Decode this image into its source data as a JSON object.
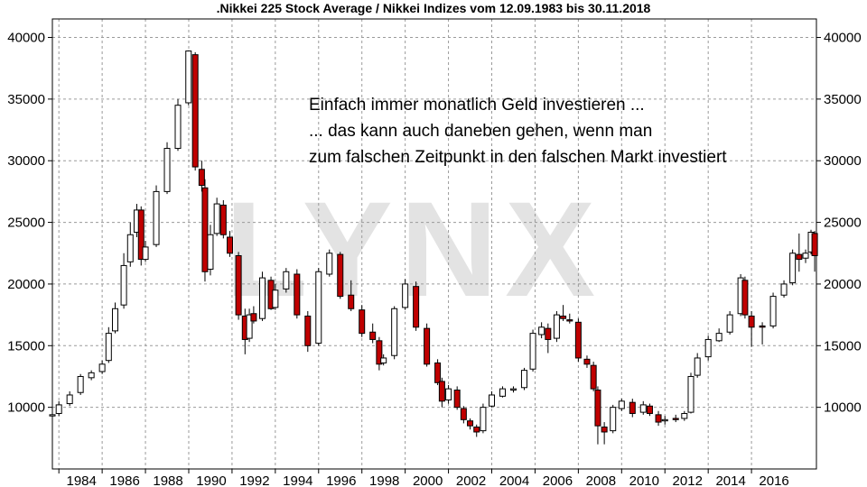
{
  "chart_data": {
    "type": "candlestick",
    "title": ".Nikkei 225 Stock Average / Nikkei Indizes vom 12.09.1983 bis 30.11.2018",
    "watermark": "LYNX",
    "annotation_lines": [
      "Einfach immer monatlich Geld investieren ...",
      "... das kann auch daneben gehen, wenn man",
      "zum falschen Zeitpunkt in den falschen Markt investiert"
    ],
    "y_ticks": [
      10000,
      15000,
      20000,
      25000,
      30000,
      35000,
      40000
    ],
    "x_ticks": [
      "1984",
      "1986",
      "1988",
      "1990",
      "1992",
      "1994",
      "1996",
      "1998",
      "2000",
      "2002",
      "2004",
      "2006",
      "2008",
      "2010",
      "2012",
      "2014",
      "2016"
    ],
    "xlim": [
      1983.7,
      2019.0
    ],
    "ylim": [
      5000,
      41500
    ],
    "grid": true,
    "colors": {
      "up": "#ffffff",
      "down": "#c00000",
      "outline": "#000000"
    },
    "x": [
      1983.7,
      1984.0,
      1984.5,
      1985.0,
      1985.5,
      1986.0,
      1986.3,
      1986.6,
      1987.0,
      1987.3,
      1987.6,
      1987.8,
      1988.0,
      1988.5,
      1989.0,
      1989.5,
      1989.99,
      1990.3,
      1990.6,
      1990.75,
      1991.0,
      1991.3,
      1991.6,
      1991.9,
      1992.3,
      1992.6,
      1992.8,
      1993.0,
      1993.4,
      1993.8,
      1994.0,
      1994.5,
      1995.0,
      1995.5,
      1996.0,
      1996.5,
      1997.0,
      1997.5,
      1998.0,
      1998.5,
      1998.8,
      1999.0,
      1999.5,
      2000.0,
      2000.5,
      2001.0,
      2001.5,
      2001.7,
      2002.0,
      2002.4,
      2002.7,
      2003.0,
      2003.3,
      2003.6,
      2004.0,
      2004.5,
      2005.0,
      2005.5,
      2005.9,
      2006.3,
      2006.6,
      2007.0,
      2007.3,
      2007.6,
      2008.0,
      2008.4,
      2008.7,
      2008.9,
      2009.2,
      2009.6,
      2010.0,
      2010.5,
      2011.0,
      2011.3,
      2011.7,
      2012.0,
      2012.5,
      2012.9,
      2013.2,
      2013.5,
      2014.0,
      2014.5,
      2015.0,
      2015.5,
      2015.7,
      2016.0,
      2016.5,
      2017.0,
      2017.5,
      2017.9,
      2018.2,
      2018.5,
      2018.75,
      2018.92
    ],
    "close": [
      9400,
      10200,
      11000,
      12500,
      12800,
      13500,
      16000,
      18000,
      21500,
      24000,
      26000,
      22000,
      23000,
      27500,
      31000,
      34500,
      38900,
      29500,
      28000,
      21000,
      24000,
      26500,
      24000,
      22500,
      17500,
      15500,
      17500,
      17000,
      20500,
      18000,
      19500,
      21000,
      17500,
      15000,
      21000,
      22500,
      19000,
      18000,
      16000,
      15500,
      13500,
      14000,
      18000,
      20000,
      16500,
      13500,
      12000,
      10500,
      11500,
      10000,
      9000,
      8500,
      8000,
      10000,
      11000,
      11500,
      11500,
      13000,
      16000,
      16500,
      15500,
      17500,
      17200,
      17000,
      14000,
      13500,
      11500,
      8500,
      8000,
      10000,
      10500,
      9500,
      10200,
      9500,
      8800,
      9000,
      9000,
      9500,
      12500,
      14000,
      15500,
      16000,
      17500,
      20500,
      17500,
      16500,
      16500,
      19000,
      20000,
      22500,
      22000,
      22500,
      24200,
      22300
    ],
    "open": [
      9300,
      9500,
      10300,
      11200,
      12400,
      12900,
      13800,
      16200,
      18300,
      21800,
      24200,
      26000,
      22000,
      23200,
      27500,
      31000,
      34700,
      38600,
      29300,
      27800,
      21200,
      24100,
      26400,
      23800,
      22300,
      17400,
      15600,
      17600,
      17200,
      20300,
      18100,
      19600,
      20800,
      17400,
      15200,
      20800,
      22400,
      19100,
      17900,
      16100,
      15400,
      13600,
      14200,
      18100,
      19800,
      16400,
      13600,
      12100,
      10600,
      11400,
      9900,
      8900,
      8400,
      8100,
      10100,
      10900,
      11400,
      11600,
      13100,
      15900,
      16400,
      15600,
      17400,
      17100,
      16900,
      13900,
      13400,
      11400,
      8400,
      8100,
      9900,
      10400,
      9600,
      10100,
      9400,
      8900,
      9100,
      9100,
      9600,
      12600,
      14100,
      15400,
      16100,
      17600,
      20300,
      17400,
      16600,
      16600,
      19100,
      20100,
      22400,
      22100,
      22600,
      24100
    ],
    "high": [
      9600,
      10500,
      11300,
      12700,
      13000,
      13800,
      16500,
      18500,
      22500,
      25000,
      26500,
      26300,
      23500,
      28000,
      31500,
      35000,
      38950,
      38800,
      30000,
      28500,
      24800,
      27000,
      26800,
      24300,
      22600,
      18000,
      18000,
      18200,
      21000,
      20600,
      20000,
      21300,
      21200,
      17800,
      21300,
      22800,
      22600,
      20300,
      18300,
      16800,
      15700,
      14300,
      18200,
      20400,
      20200,
      16800,
      13900,
      12400,
      11800,
      11700,
      10100,
      9100,
      8600,
      10300,
      11300,
      11700,
      11700,
      13200,
      16300,
      16900,
      16800,
      17800,
      18300,
      17600,
      17200,
      14200,
      13700,
      11700,
      8800,
      10200,
      10700,
      10700,
      10500,
      10300,
      9700,
      9300,
      9400,
      9700,
      12800,
      14400,
      15800,
      16400,
      17800,
      20800,
      20600,
      17800,
      16900,
      19300,
      20300,
      22800,
      24100,
      22800,
      24400,
      24300
    ],
    "low": [
      9000,
      9300,
      10100,
      11000,
      12200,
      12700,
      13600,
      16000,
      18000,
      21400,
      23800,
      21500,
      21800,
      23000,
      27300,
      30800,
      34500,
      29200,
      27500,
      20200,
      20700,
      23900,
      23700,
      22200,
      17100,
      14300,
      15300,
      16800,
      17000,
      17900,
      17900,
      19300,
      17200,
      14500,
      15000,
      20600,
      18800,
      17800,
      15700,
      15200,
      13000,
      13400,
      13900,
      17900,
      16200,
      13300,
      11800,
      10000,
      10300,
      9800,
      8700,
      8200,
      7600,
      7900,
      10000,
      10800,
      11200,
      11400,
      12900,
      15600,
      14400,
      15300,
      17000,
      16800,
      13700,
      13200,
      11300,
      7000,
      7000,
      7900,
      9700,
      9200,
      9400,
      9300,
      8500,
      8600,
      8800,
      8900,
      9500,
      12400,
      13800,
      15300,
      15900,
      17400,
      17200,
      14900,
      15100,
      16400,
      18900,
      19900,
      21000,
      21700,
      22400,
      21000
    ]
  }
}
